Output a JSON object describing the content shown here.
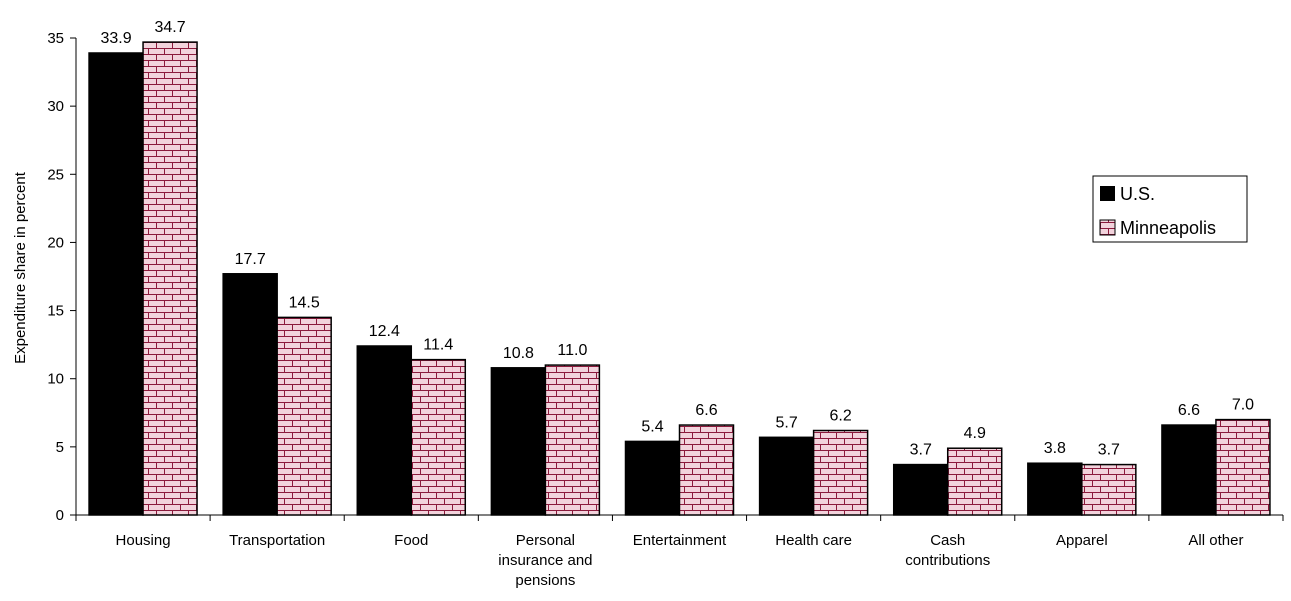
{
  "chart_data": {
    "type": "bar",
    "title": "",
    "xlabel": "",
    "ylabel": "Expenditure share in percent",
    "ylim": [
      0,
      35
    ],
    "yticks": [
      0,
      5,
      10,
      15,
      20,
      25,
      30,
      35
    ],
    "categories": [
      [
        "Housing"
      ],
      [
        "Transportation"
      ],
      [
        "Food"
      ],
      [
        "Personal",
        "insurance and",
        "pensions"
      ],
      [
        "Entertainment"
      ],
      [
        "Health care"
      ],
      [
        "Cash",
        "contributions"
      ],
      [
        "Apparel"
      ],
      [
        "All other"
      ]
    ],
    "series": [
      {
        "name": "U.S.",
        "values": [
          33.9,
          17.7,
          12.4,
          10.8,
          5.4,
          5.7,
          3.7,
          3.8,
          6.6
        ],
        "labels": [
          "33.9",
          "17.7",
          "12.4",
          "10.8",
          "5.4",
          "5.7",
          "3.7",
          "3.8",
          "6.6"
        ],
        "color": "#000000",
        "pattern": "solid"
      },
      {
        "name": "Minneapolis",
        "values": [
          34.7,
          14.5,
          11.4,
          11.0,
          6.6,
          6.2,
          4.9,
          3.7,
          7.0
        ],
        "labels": [
          "34.7",
          "14.5",
          "11.4",
          "11.0",
          "6.6",
          "6.2",
          "4.9",
          "3.7",
          "7.0"
        ],
        "color": "#f2d3dc",
        "pattern": "brick",
        "pattern_color": "#8b1a3c"
      }
    ],
    "legend_position": "right",
    "grid": false
  }
}
